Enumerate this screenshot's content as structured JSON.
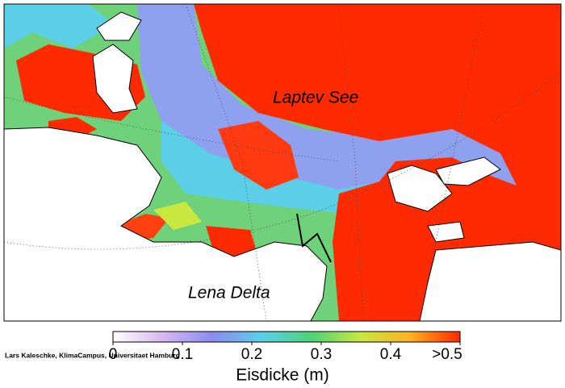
{
  "labels": {
    "sea": "Laptev See",
    "delta": "Lena Delta"
  },
  "colorbar": {
    "title": "Eisdicke (m)",
    "lim": [
      0,
      0.5
    ],
    "ticks": [
      0,
      0.1,
      0.2,
      0.3,
      0.4,
      {
        "value": 0.5,
        "label": ">0.5"
      }
    ],
    "colors": [
      "#ffffff",
      "#d8b8f0",
      "#8c8cf0",
      "#5ccfe8",
      "#4fd27a",
      "#c8e840",
      "#ffb020",
      "#ff2a00"
    ]
  },
  "credit": "Lars Kaleschke, KlimaCampus, Universitaet Hamburg"
}
